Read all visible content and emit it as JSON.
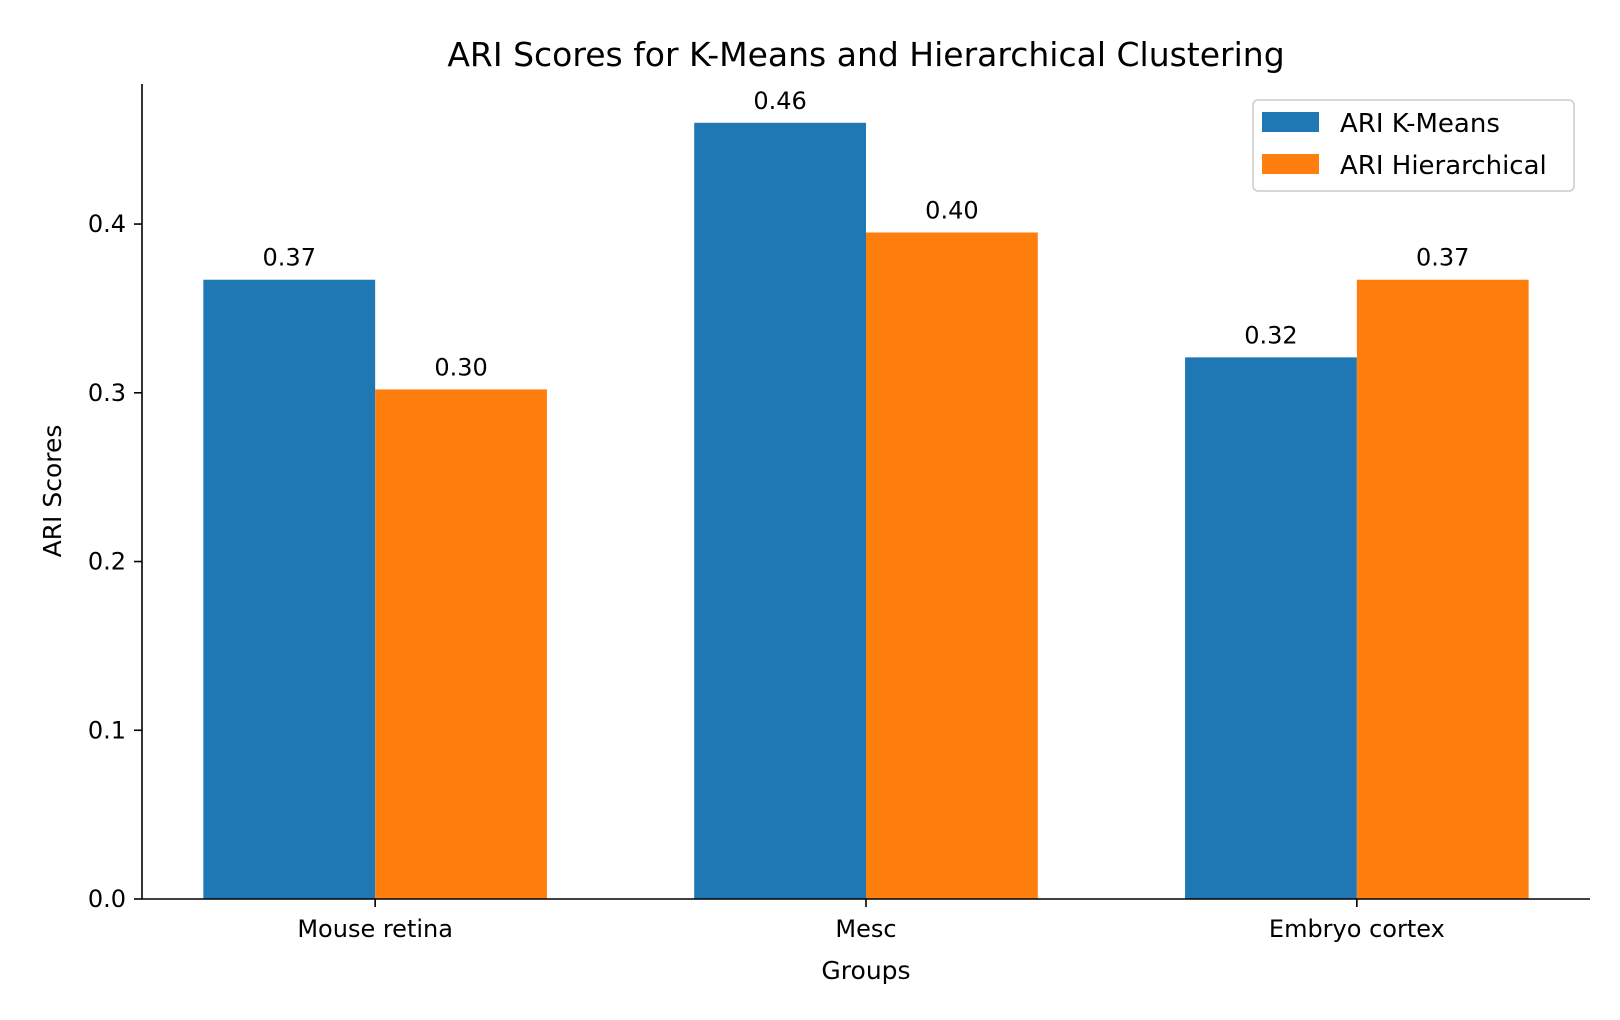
{
  "chart_data": {
    "type": "bar",
    "title": "ARI Scores for K-Means and Hierarchical Clustering",
    "xlabel": "Groups",
    "ylabel": "ARI Scores",
    "categories": [
      "Mouse retina",
      "Mesc",
      "Embryo cortex"
    ],
    "series": [
      {
        "name": "ARI K-Means",
        "color": "#1f77b4",
        "values": [
          0.367,
          0.46,
          0.321
        ],
        "labels": [
          "0.37",
          "0.46",
          "0.32"
        ]
      },
      {
        "name": "ARI Hierarchical",
        "color": "#ff7f0e",
        "values": [
          0.302,
          0.395,
          0.367
        ],
        "labels": [
          "0.30",
          "0.40",
          "0.37"
        ]
      }
    ],
    "ylim": [
      0,
      0.483
    ],
    "yticks": [
      0.0,
      0.1,
      0.2,
      0.3,
      0.4
    ],
    "ytick_labels": [
      "0.0",
      "0.1",
      "0.2",
      "0.3",
      "0.4"
    ],
    "grid": false,
    "legend": "top-right"
  }
}
